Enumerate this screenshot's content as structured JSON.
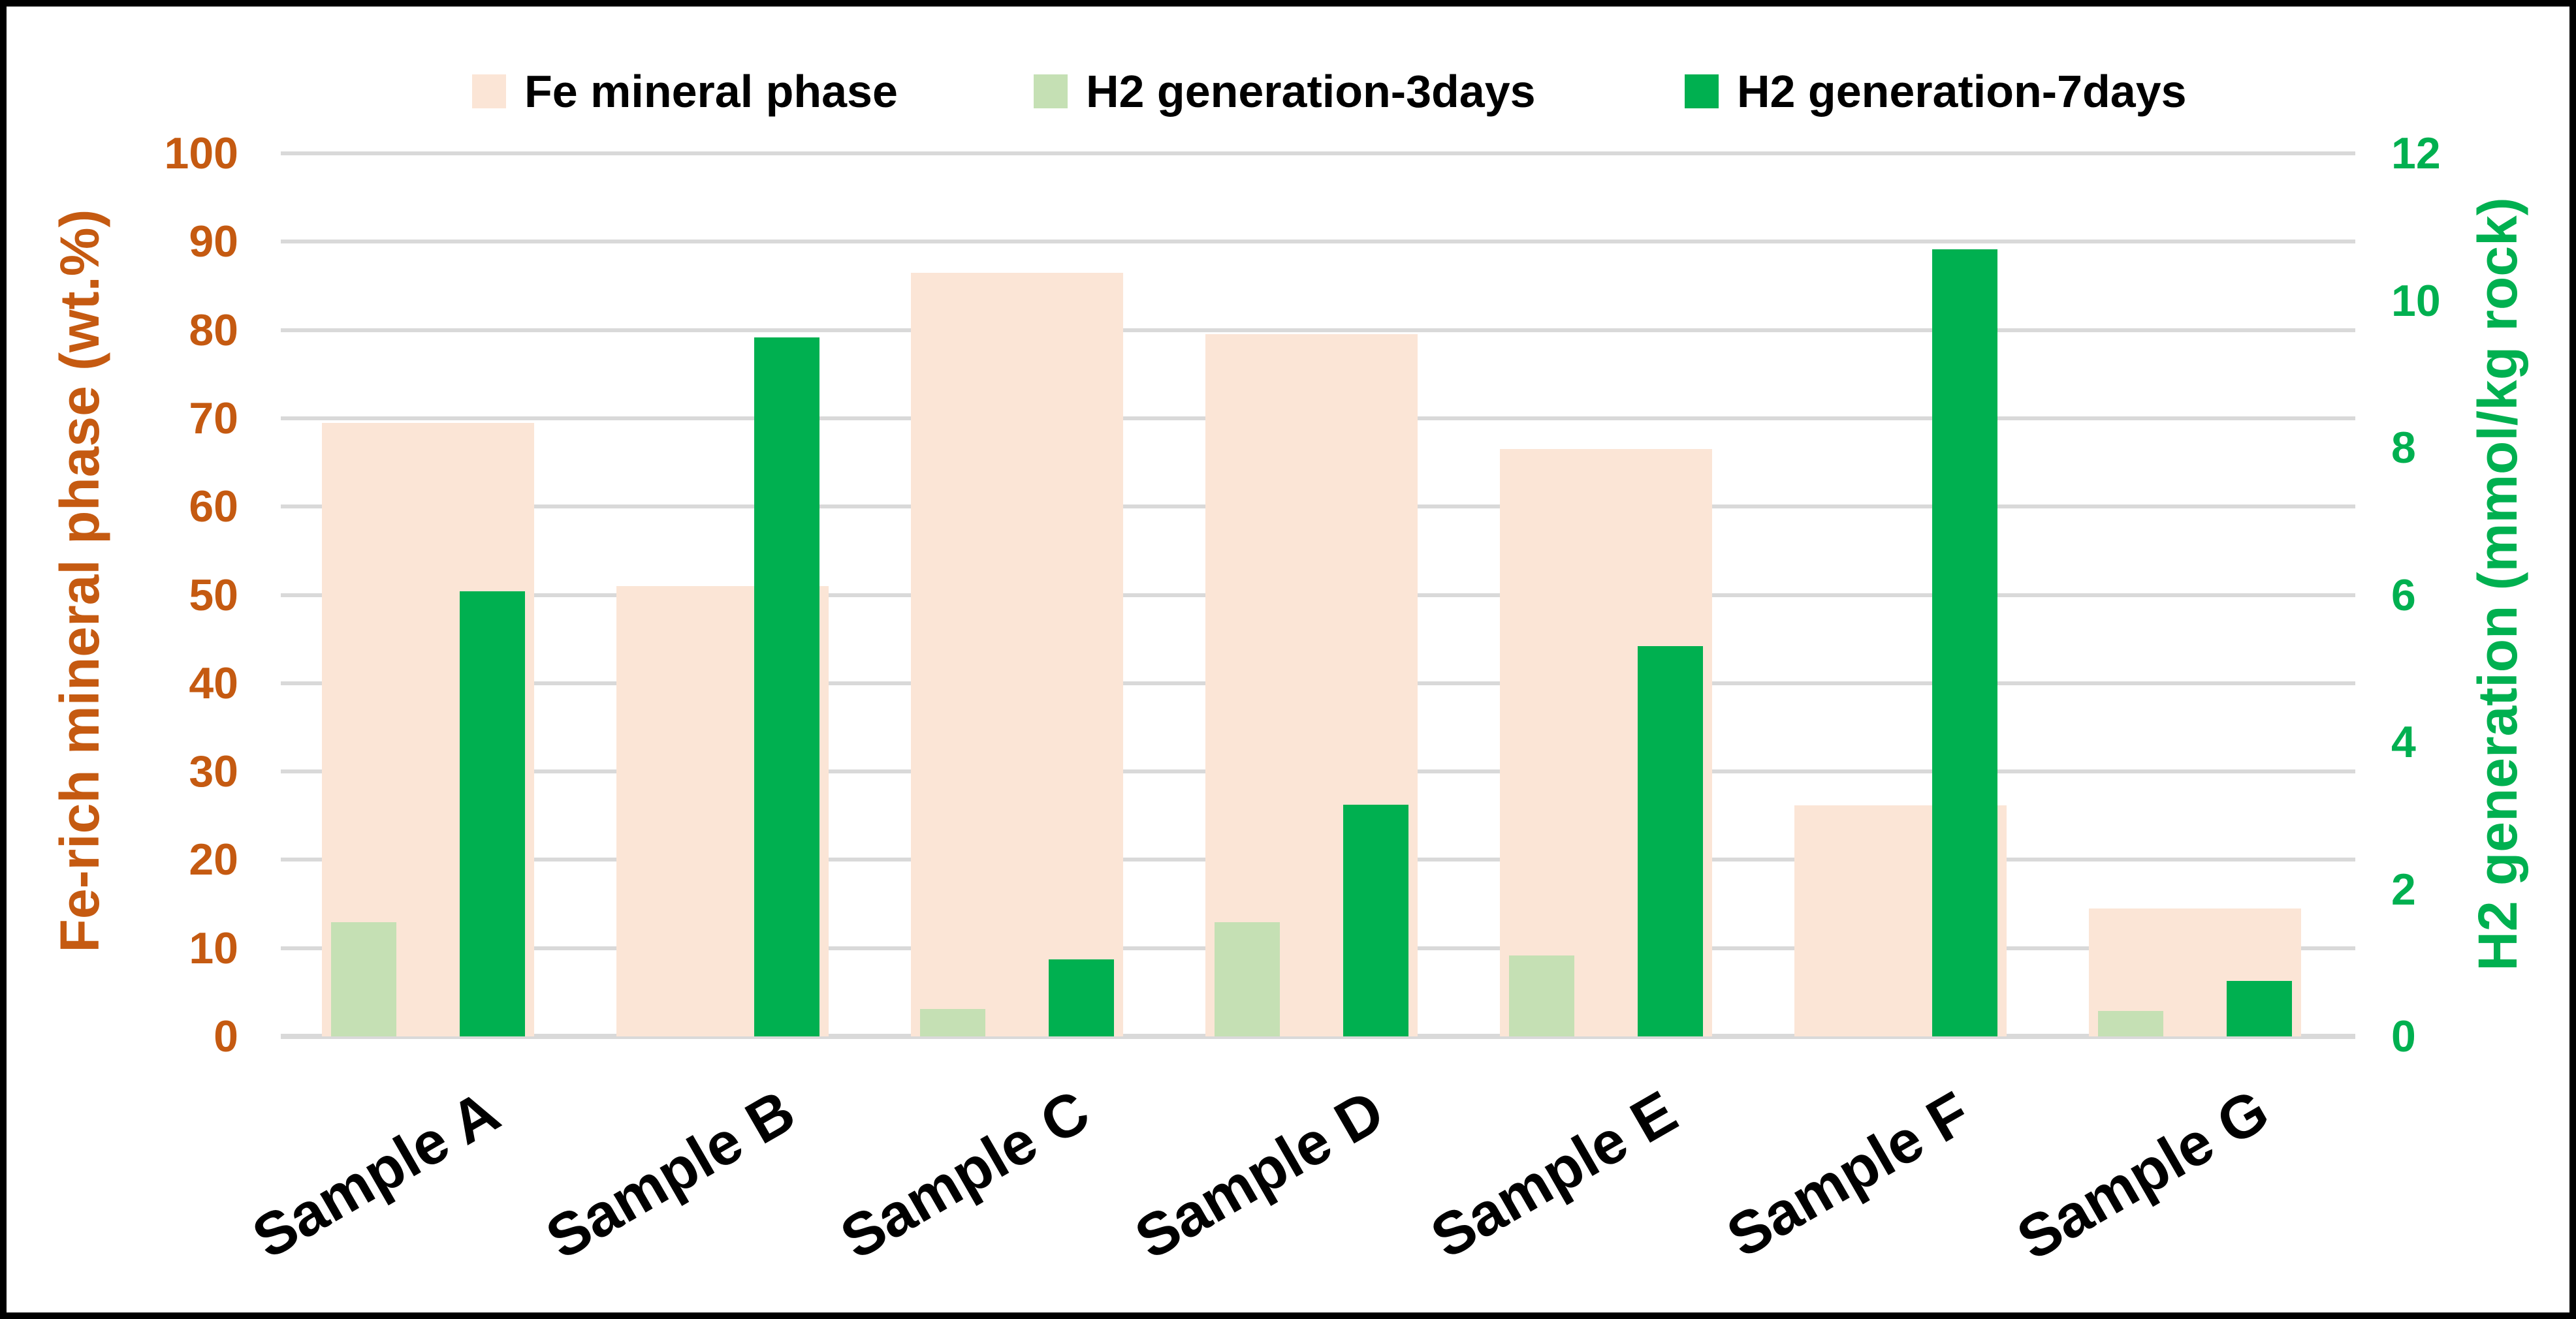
{
  "figure": {
    "background": "#FFFFFF",
    "border_color": "#000000",
    "gridline_color": "#D9D9D9"
  },
  "legend": {
    "items": [
      {
        "label": "Fe mineral phase",
        "color": "#FBE5D6"
      },
      {
        "label": "H2 generation-3days",
        "color": "#C5E0B4"
      },
      {
        "label": "H2 generation-7days",
        "color": "#00B050"
      }
    ]
  },
  "left_axis": {
    "title": "Fe-rich mineral phase (wt.%)",
    "color": "#C55A11",
    "range": [
      0,
      100
    ],
    "tick_step": 10,
    "ticks": [
      0,
      10,
      20,
      30,
      40,
      50,
      60,
      70,
      80,
      90,
      100
    ]
  },
  "right_axis": {
    "title": "H2 generation (mmol/kg rock)",
    "color": "#00B050",
    "range": [
      0,
      12
    ],
    "tick_step": 2,
    "ticks": [
      0,
      2,
      4,
      6,
      8,
      10,
      12
    ]
  },
  "chart_data": {
    "type": "bar",
    "categories": [
      "Sample A",
      "Sample B",
      "Sample C",
      "Sample D",
      "Sample E",
      "Sample F",
      "Sample G"
    ],
    "series": [
      {
        "name": "Fe mineral phase",
        "axis": "left",
        "color": "#FBE5D6",
        "values": [
          69.5,
          51,
          86.5,
          79.5,
          66.5,
          26.2,
          14.5
        ]
      },
      {
        "name": "H2 generation-3days",
        "axis": "right",
        "color": "#C5E0B4",
        "values": [
          1.55,
          0,
          0.37,
          1.55,
          1.1,
          0,
          0.35
        ]
      },
      {
        "name": "H2 generation-7days",
        "axis": "right",
        "color": "#00B050",
        "values": [
          6.05,
          9.5,
          1.05,
          3.15,
          5.3,
          10.7,
          0.75
        ]
      }
    ],
    "title": "",
    "xlabel": "",
    "ylabel_left": "Fe-rich mineral phase (wt.%)",
    "ylabel_right": "H2 generation (mmol/kg rock)",
    "ylim_left": [
      0,
      100
    ],
    "ylim_right": [
      0,
      12
    ],
    "grid": true,
    "legend_position": "top"
  }
}
